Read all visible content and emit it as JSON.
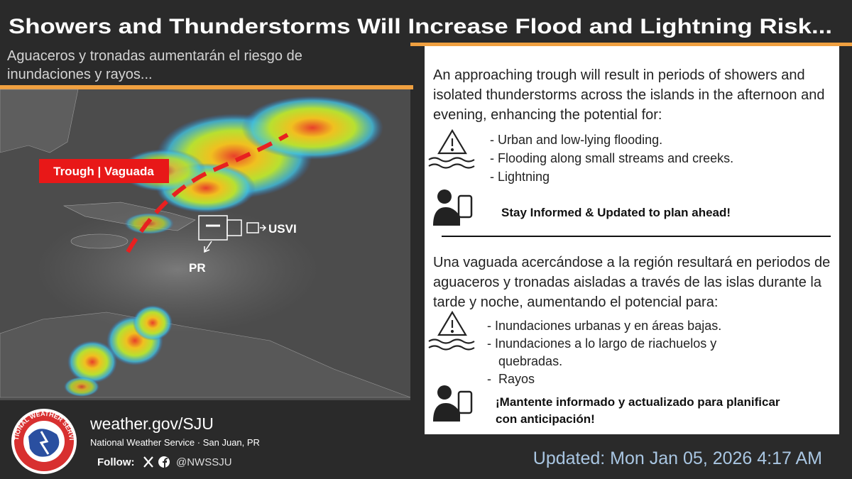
{
  "header": {
    "title": "Showers and Thunderstorms Will Increase Flood and Lightning Risk...",
    "subtitle": "Aguaceros y tronadas aumentarán el riesgo de inundaciones y rayos..."
  },
  "map": {
    "trough_label": "Trough | Vaguada",
    "usvi_label": "USVI",
    "pr_label": "PR"
  },
  "english": {
    "intro": "An approaching trough will result in periods of showers and isolated thunderstorms across the islands in the afternoon and evening, enhancing the potential for:",
    "hazards": [
      "- Urban and low-lying flooding.",
      "- Flooding along small streams and creeks.",
      "- Lightning"
    ],
    "call_to_action": "Stay Informed & Updated to plan ahead!"
  },
  "spanish": {
    "intro": "Una vaguada acercándose a la región resultará en periodos de aguaceros y tronadas aisladas a través de las islas durante la tarde y noche, aumentando el potencial para:",
    "hazards": [
      "- Inundaciones urbanas y en áreas bajas.",
      "- Inundaciones a lo largo de riachuelos y quebradas.",
      "-  Rayos"
    ],
    "call_to_action": "¡Mantente informado y actualizado para planificar con anticipación!"
  },
  "footer": {
    "logo_text": "NATIONAL WEATHER SERVICE",
    "website": "weather.gov/SJU",
    "office": "National Weather Service · San Juan, PR",
    "follow_label": "Follow:",
    "handle": "@NWSSJU",
    "updated": "Updated: Mon Jan 05, 2026 4:17 AM"
  }
}
